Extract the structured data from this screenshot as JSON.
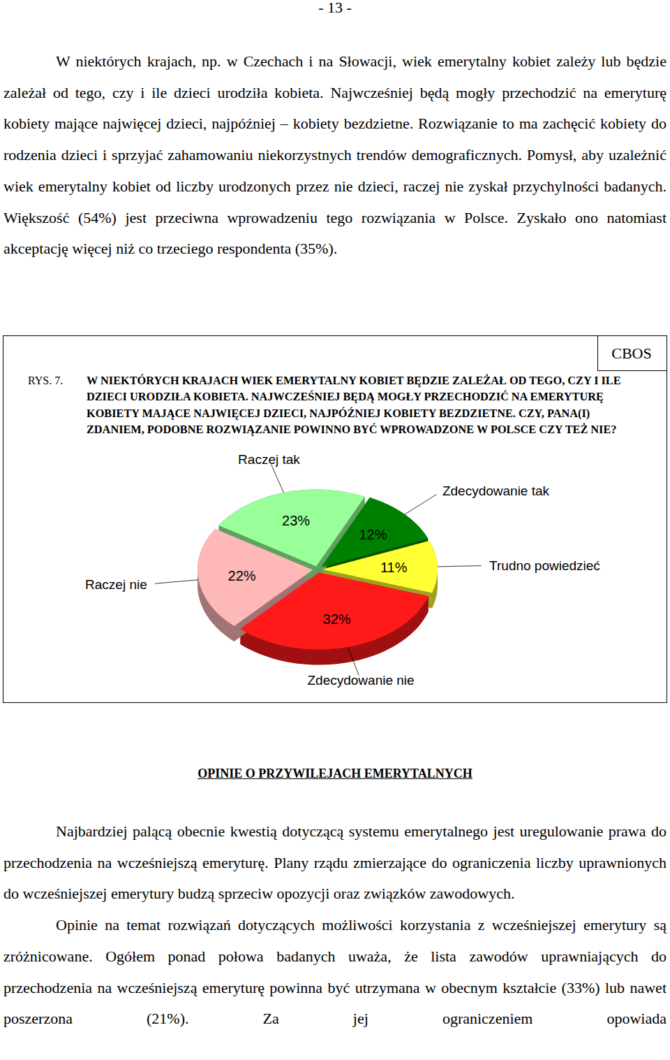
{
  "page_number": "- 13 -",
  "paragraphs_before": [
    "W niektórych krajach, np. w Czechach i na Słowacji, wiek emerytalny kobiet zależy lub będzie zależał od tego, czy i ile dzieci urodziła kobieta. Najwcześniej będą mogły przechodzić na emeryturę kobiety mające najwięcej dzieci, najpóźniej – kobiety bezdzietne. Rozwiązanie to ma zachęcić kobiety do rodzenia dzieci i sprzyjać zahamowaniu niekorzystnych trendów demograficznych. Pomysł, aby uzależnić wiek emerytalny kobiet od liczby urodzonych przez nie dzieci, raczej nie zyskał przychylności badanych. Większość (54%) jest przeciwna wprowadzeniu tego rozwiązania w Polsce. Zyskało ono natomiast akceptację więcej niż co trzeciego respondenta (35%)."
  ],
  "chart_data": {
    "type": "pie",
    "figure_label": "RYS. 7.",
    "source": "CBOS",
    "title": "W NIEKTÓRYCH KRAJACH WIEK EMERYTALNY KOBIET BĘDZIE ZALEŻAŁ OD TEGO, CZY I ILE DZIECI URODZIŁA KOBIETA. NAJWCZEŚNIEJ BĘDĄ MOGŁY PRZECHODZIĆ NA EMERYTURĘ KOBIETY MAJĄCE NAJWIĘCEJ DZIECI, NAJPÓŹNIEJ KOBIETY BEZDZIETNE. CZY, PANA(I) ZDANIEM, PODOBNE ROZWIĄZANIE POWINNO BYĆ WPROWADZONE W POLSCE CZY TEŻ NIE?",
    "categories": [
      "Zdecydowanie tak",
      "Trudno powiedzieć",
      "Zdecydowanie nie",
      "Raczej nie",
      "Raczej tak"
    ],
    "values": [
      12,
      11,
      32,
      22,
      23
    ],
    "value_labels": [
      "12%",
      "11%",
      "32%",
      "22%",
      "23%"
    ],
    "colors": [
      "#008000",
      "#ffff33",
      "#ff1a1a",
      "#ffb8b8",
      "#99ff99"
    ],
    "data_labels": true
  },
  "heading": "OPINIE O PRZYWILEJACH EMERYTALNYCH",
  "paragraphs_after": [
    "Najbardziej palącą obecnie kwestią dotyczącą systemu emerytalnego jest uregulowanie prawa do przechodzenia na wcześniejszą emeryturę. Plany rządu zmierzające do ograniczenia liczby uprawnionych do wcześniejszej emerytury budzą sprzeciw opozycji oraz związków zawodowych.",
    "Opinie na temat rozwiązań dotyczących możliwości korzystania z wcześniejszej emerytury są zróżnicowane. Ogółem ponad połowa badanych uważa, że lista zawodów uprawniających do przechodzenia na wcześniejszą emeryturę powinna być utrzymana w obecnym kształcie (33%) lub nawet poszerzona (21%). Za jej ograniczeniem opowiada"
  ]
}
